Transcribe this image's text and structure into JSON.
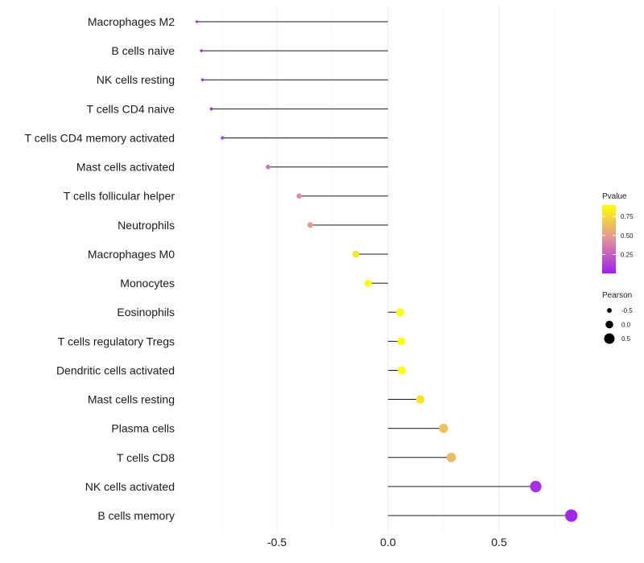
{
  "chart_data": {
    "type": "lollipop",
    "title": "",
    "xlabel": "",
    "ylabel": "",
    "xlim": [
      -0.98,
      0.86
    ],
    "xticks": [
      -0.5,
      0.0,
      0.5
    ],
    "xtick_labels": [
      "-0.5",
      "0.0",
      "0.5"
    ],
    "grid": true,
    "categories": [
      "Macrophages M2",
      "B cells naive",
      "NK cells resting",
      "T cells CD4 naive",
      "T cells CD4 memory activated",
      "Mast cells activated",
      "T cells follicular helper",
      "Neutrophils",
      "Macrophages M0",
      "Monocytes",
      "Eosinophils",
      "T cells regulatory  Tregs ",
      "Dendritic cells activated",
      "Mast cells resting",
      "Plasma cells",
      "T cells CD8",
      "NK cells activated",
      "B cells memory"
    ],
    "pearson": [
      -0.86,
      -0.84,
      -0.835,
      -0.795,
      -0.745,
      -0.54,
      -0.4,
      -0.35,
      -0.145,
      -0.09,
      0.055,
      0.06,
      0.062,
      0.145,
      0.25,
      0.285,
      0.665,
      0.825
    ],
    "pvalue": [
      0.02,
      0.03,
      0.03,
      0.05,
      0.1,
      0.35,
      0.45,
      0.5,
      0.8,
      0.92,
      0.97,
      0.97,
      0.97,
      0.8,
      0.65,
      0.62,
      0.06,
      0.02
    ],
    "color_legend": {
      "title": "Pvalue",
      "ticks": [
        0.75,
        0.5,
        0.25
      ],
      "tick_labels": [
        "0.75",
        "0.50",
        "0.25"
      ],
      "range": [
        0.0,
        0.9
      ],
      "low_color": "#a020f0",
      "mid_color": "#e0909a",
      "high_color": "#ffff00"
    },
    "size_legend": {
      "title": "Pearson",
      "values": [
        -0.5,
        0.0,
        0.5
      ],
      "labels": [
        "-0.5",
        "0.0",
        "0.5"
      ]
    }
  }
}
